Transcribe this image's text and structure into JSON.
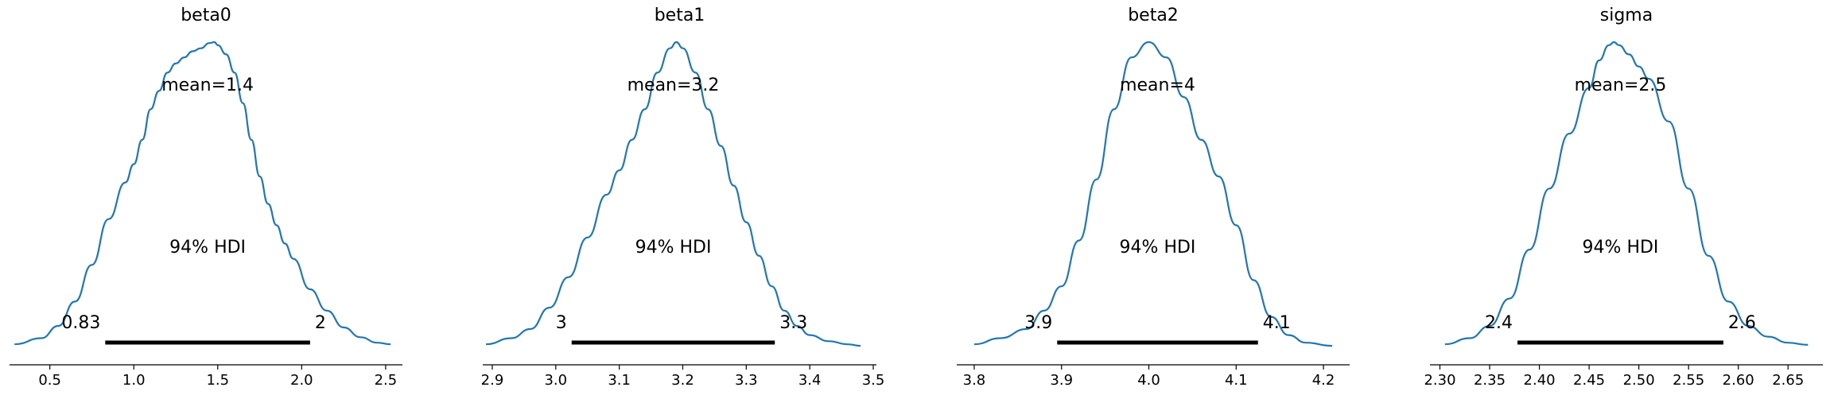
{
  "chart_data": [
    {
      "type": "area",
      "title": "beta0",
      "xlim": [
        0.26,
        2.6
      ],
      "xticks": [
        0.5,
        1.0,
        1.5,
        2.0,
        2.5
      ],
      "tick_labels": [
        "0.5",
        "1.0",
        "1.5",
        "2.0",
        "2.5"
      ],
      "mean_label": "mean=1.4",
      "hdi_label": "94% HDI",
      "hdi": [
        0.83,
        2.05
      ],
      "hdi_low_label": "0.83",
      "hdi_high_label": "2",
      "density": {
        "x": [
          0.29,
          0.45,
          0.55,
          0.65,
          0.75,
          0.85,
          0.95,
          1.0,
          1.05,
          1.1,
          1.15,
          1.2,
          1.25,
          1.3,
          1.35,
          1.4,
          1.45,
          1.48,
          1.5,
          1.55,
          1.6,
          1.65,
          1.7,
          1.75,
          1.8,
          1.85,
          1.9,
          1.95,
          2.05,
          2.15,
          2.25,
          2.35,
          2.45,
          2.53
        ],
        "y": [
          0.01,
          0.03,
          0.07,
          0.15,
          0.27,
          0.42,
          0.54,
          0.6,
          0.68,
          0.78,
          0.84,
          0.9,
          0.93,
          0.95,
          0.97,
          0.98,
          0.997,
          1.0,
          0.99,
          0.96,
          0.9,
          0.8,
          0.68,
          0.56,
          0.47,
          0.4,
          0.34,
          0.29,
          0.19,
          0.12,
          0.065,
          0.033,
          0.015,
          0.01
        ]
      }
    },
    {
      "type": "area",
      "title": "beta1",
      "xlim": [
        2.885,
        3.505
      ],
      "xticks": [
        2.9,
        3.0,
        3.1,
        3.2,
        3.3,
        3.4,
        3.5
      ],
      "tick_labels": [
        "2.9",
        "3.0",
        "3.1",
        "3.2",
        "3.3",
        "3.4",
        "3.5"
      ],
      "mean_label": "mean=3.2",
      "hdi_label": "94% HDI",
      "hdi": [
        3.025,
        3.345
      ],
      "hdi_low_label": "3",
      "hdi_high_label": "3.3",
      "density": {
        "x": [
          2.89,
          2.93,
          2.96,
          2.99,
          3.02,
          3.05,
          3.08,
          3.1,
          3.12,
          3.14,
          3.16,
          3.18,
          3.19,
          3.2,
          3.22,
          3.24,
          3.26,
          3.28,
          3.3,
          3.32,
          3.34,
          3.36,
          3.38,
          3.4,
          3.43,
          3.46,
          3.48
        ],
        "y": [
          0.01,
          0.03,
          0.06,
          0.13,
          0.23,
          0.36,
          0.5,
          0.58,
          0.68,
          0.78,
          0.9,
          0.98,
          1.0,
          0.98,
          0.9,
          0.78,
          0.66,
          0.53,
          0.41,
          0.3,
          0.2,
          0.12,
          0.07,
          0.04,
          0.02,
          0.01,
          0.005
        ]
      }
    },
    {
      "type": "area",
      "title": "beta2",
      "xlim": [
        3.78,
        4.23
      ],
      "xticks": [
        3.8,
        3.9,
        4.0,
        4.1,
        4.2
      ],
      "tick_labels": [
        "3.8",
        "3.9",
        "4.0",
        "4.1",
        "4.2"
      ],
      "mean_label": "mean=4",
      "hdi_label": "94% HDI",
      "hdi": [
        3.895,
        4.125
      ],
      "hdi_low_label": "3.9",
      "hdi_high_label": "4.1",
      "density": {
        "x": [
          3.8,
          3.83,
          3.86,
          3.88,
          3.9,
          3.92,
          3.94,
          3.96,
          3.98,
          4.0,
          4.02,
          4.04,
          4.06,
          4.08,
          4.1,
          4.12,
          4.14,
          4.16,
          4.18,
          4.21
        ],
        "y": [
          0.01,
          0.03,
          0.06,
          0.12,
          0.2,
          0.35,
          0.55,
          0.78,
          0.95,
          1.0,
          0.95,
          0.82,
          0.68,
          0.56,
          0.4,
          0.22,
          0.1,
          0.04,
          0.015,
          0.005
        ]
      }
    },
    {
      "type": "area",
      "title": "sigma",
      "xlim": [
        2.29,
        2.685
      ],
      "xticks": [
        2.3,
        2.35,
        2.4,
        2.45,
        2.5,
        2.55,
        2.6,
        2.65
      ],
      "tick_labels": [
        "2.30",
        "2.35",
        "2.40",
        "2.45",
        "2.50",
        "2.55",
        "2.60",
        "2.65"
      ],
      "mean_label": "mean=2.5",
      "hdi_label": "94% HDI",
      "hdi": [
        2.378,
        2.585
      ],
      "hdi_low_label": "2.4",
      "hdi_high_label": "2.6",
      "density": {
        "x": [
          2.305,
          2.33,
          2.35,
          2.37,
          2.39,
          2.41,
          2.43,
          2.45,
          2.46,
          2.47,
          2.475,
          2.48,
          2.49,
          2.5,
          2.51,
          2.53,
          2.55,
          2.57,
          2.59,
          2.61,
          2.63,
          2.65,
          2.67
        ],
        "y": [
          0.01,
          0.03,
          0.07,
          0.16,
          0.32,
          0.52,
          0.7,
          0.85,
          0.94,
          0.99,
          1.0,
          0.99,
          0.96,
          0.92,
          0.88,
          0.74,
          0.52,
          0.3,
          0.15,
          0.07,
          0.035,
          0.015,
          0.008
        ]
      }
    }
  ]
}
